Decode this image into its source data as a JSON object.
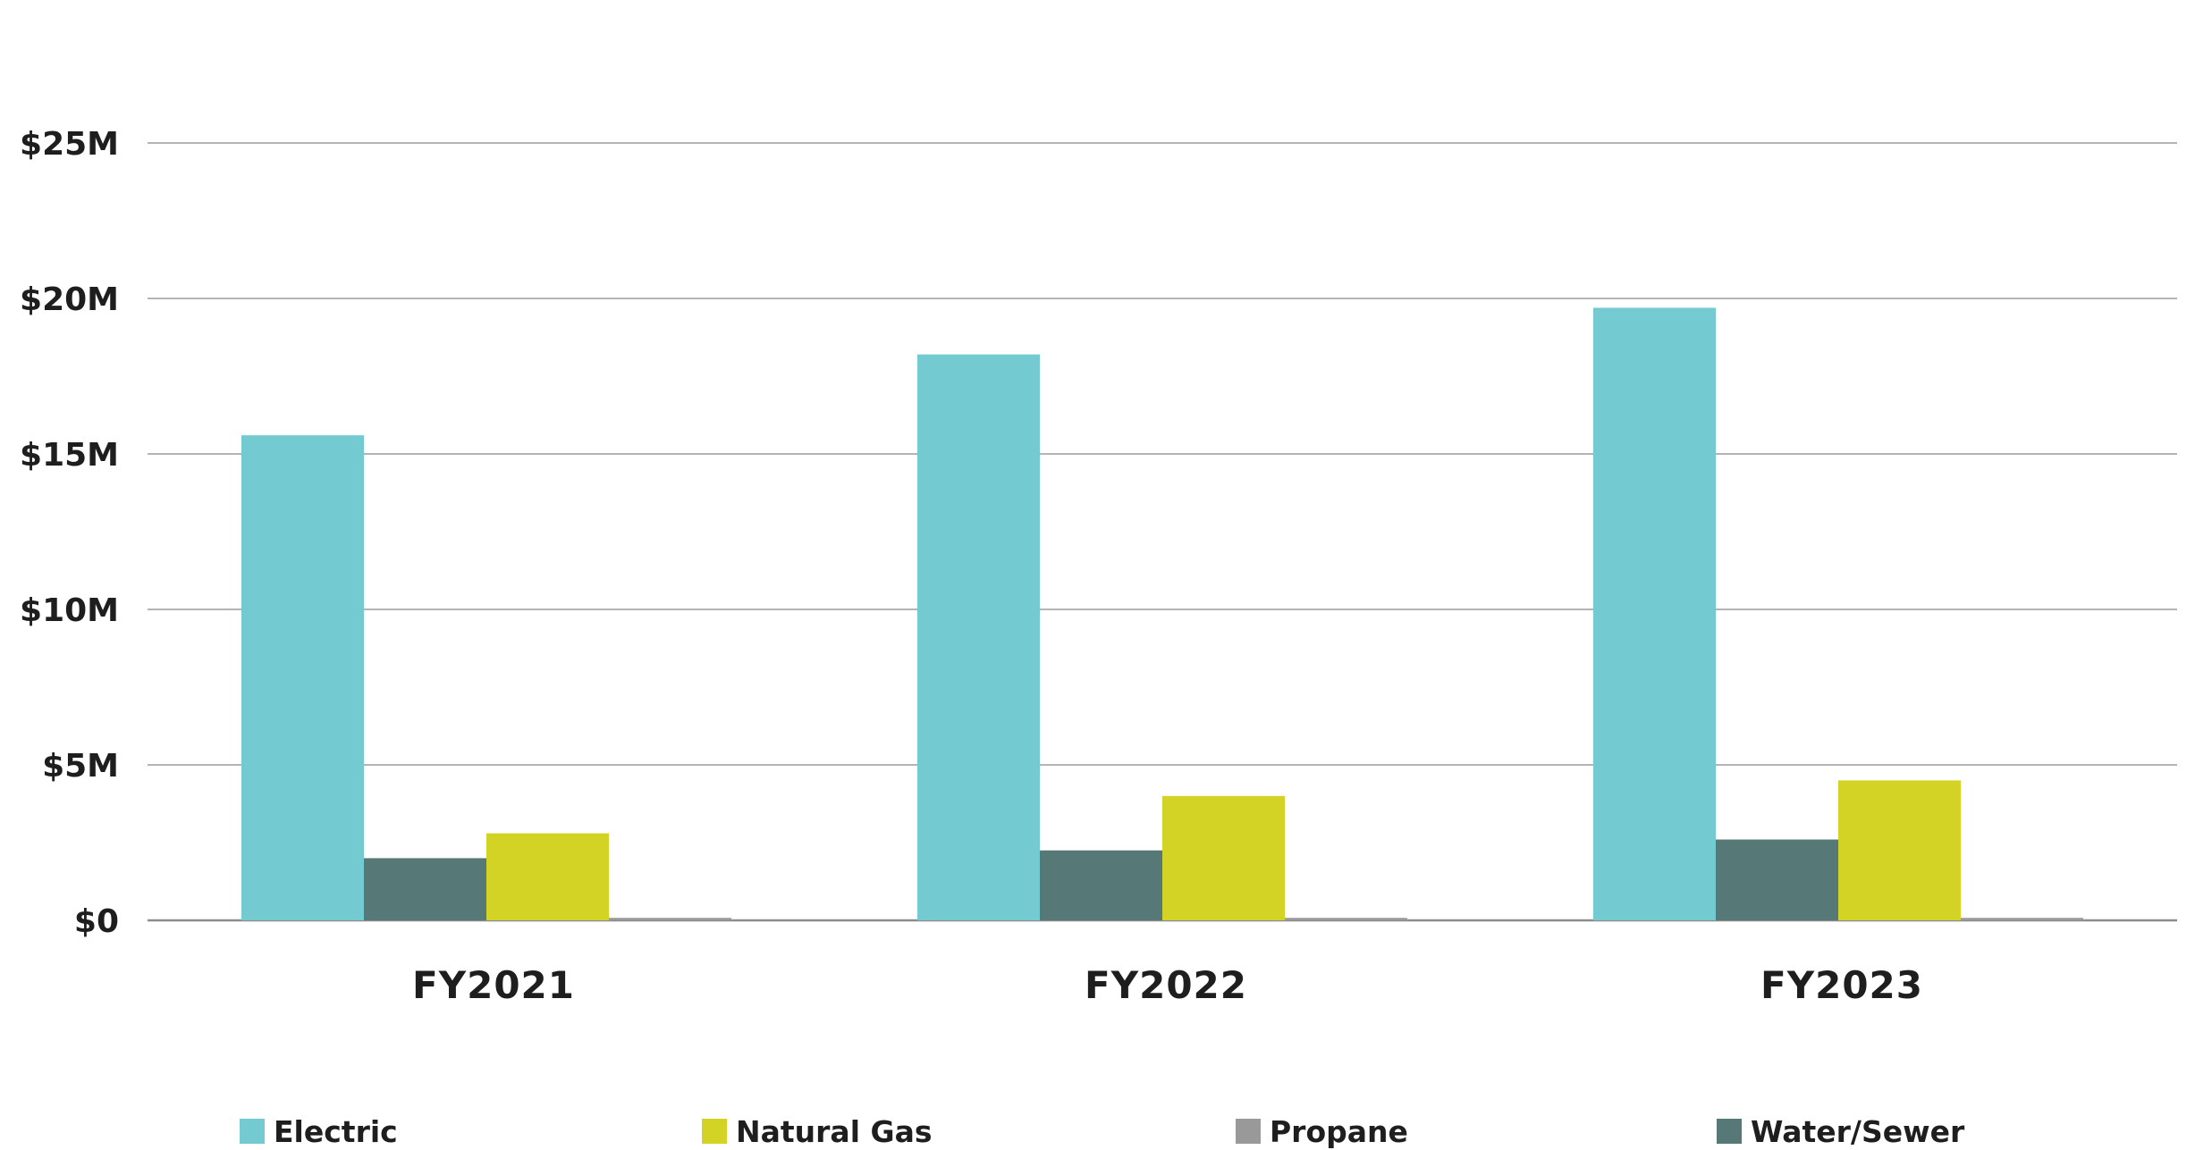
{
  "chart_data": {
    "type": "bar",
    "title": "",
    "xlabel": "",
    "ylabel": "",
    "categories": [
      "FY2021",
      "FY2022",
      "FY2023"
    ],
    "ylim": [
      0,
      25
    ],
    "yticks": [
      0,
      5,
      10,
      15,
      20,
      25
    ],
    "ytick_labels": [
      "$0",
      "$5M",
      "$10M",
      "$15M",
      "$20M",
      "$25M"
    ],
    "grid": true,
    "legend_position": "bottom",
    "series": [
      {
        "name": "Electric",
        "color": "#73cbd1",
        "values": [
          15.6,
          18.2,
          19.7
        ]
      },
      {
        "name": "Water/Sewer",
        "color": "#567876",
        "values": [
          2.0,
          2.25,
          2.6
        ]
      },
      {
        "name": "Natural Gas",
        "color": "#d3d325",
        "values": [
          2.8,
          4.0,
          4.5
        ]
      },
      {
        "name": "Propane",
        "color": "#999999",
        "values": [
          0.08,
          0.08,
          0.08
        ]
      }
    ],
    "legend": [
      {
        "name": "Electric",
        "color": "#73cbd1"
      },
      {
        "name": "Natural Gas",
        "color": "#d3d325"
      },
      {
        "name": "Propane",
        "color": "#999999"
      },
      {
        "name": "Water/Sewer",
        "color": "#567876"
      }
    ]
  }
}
